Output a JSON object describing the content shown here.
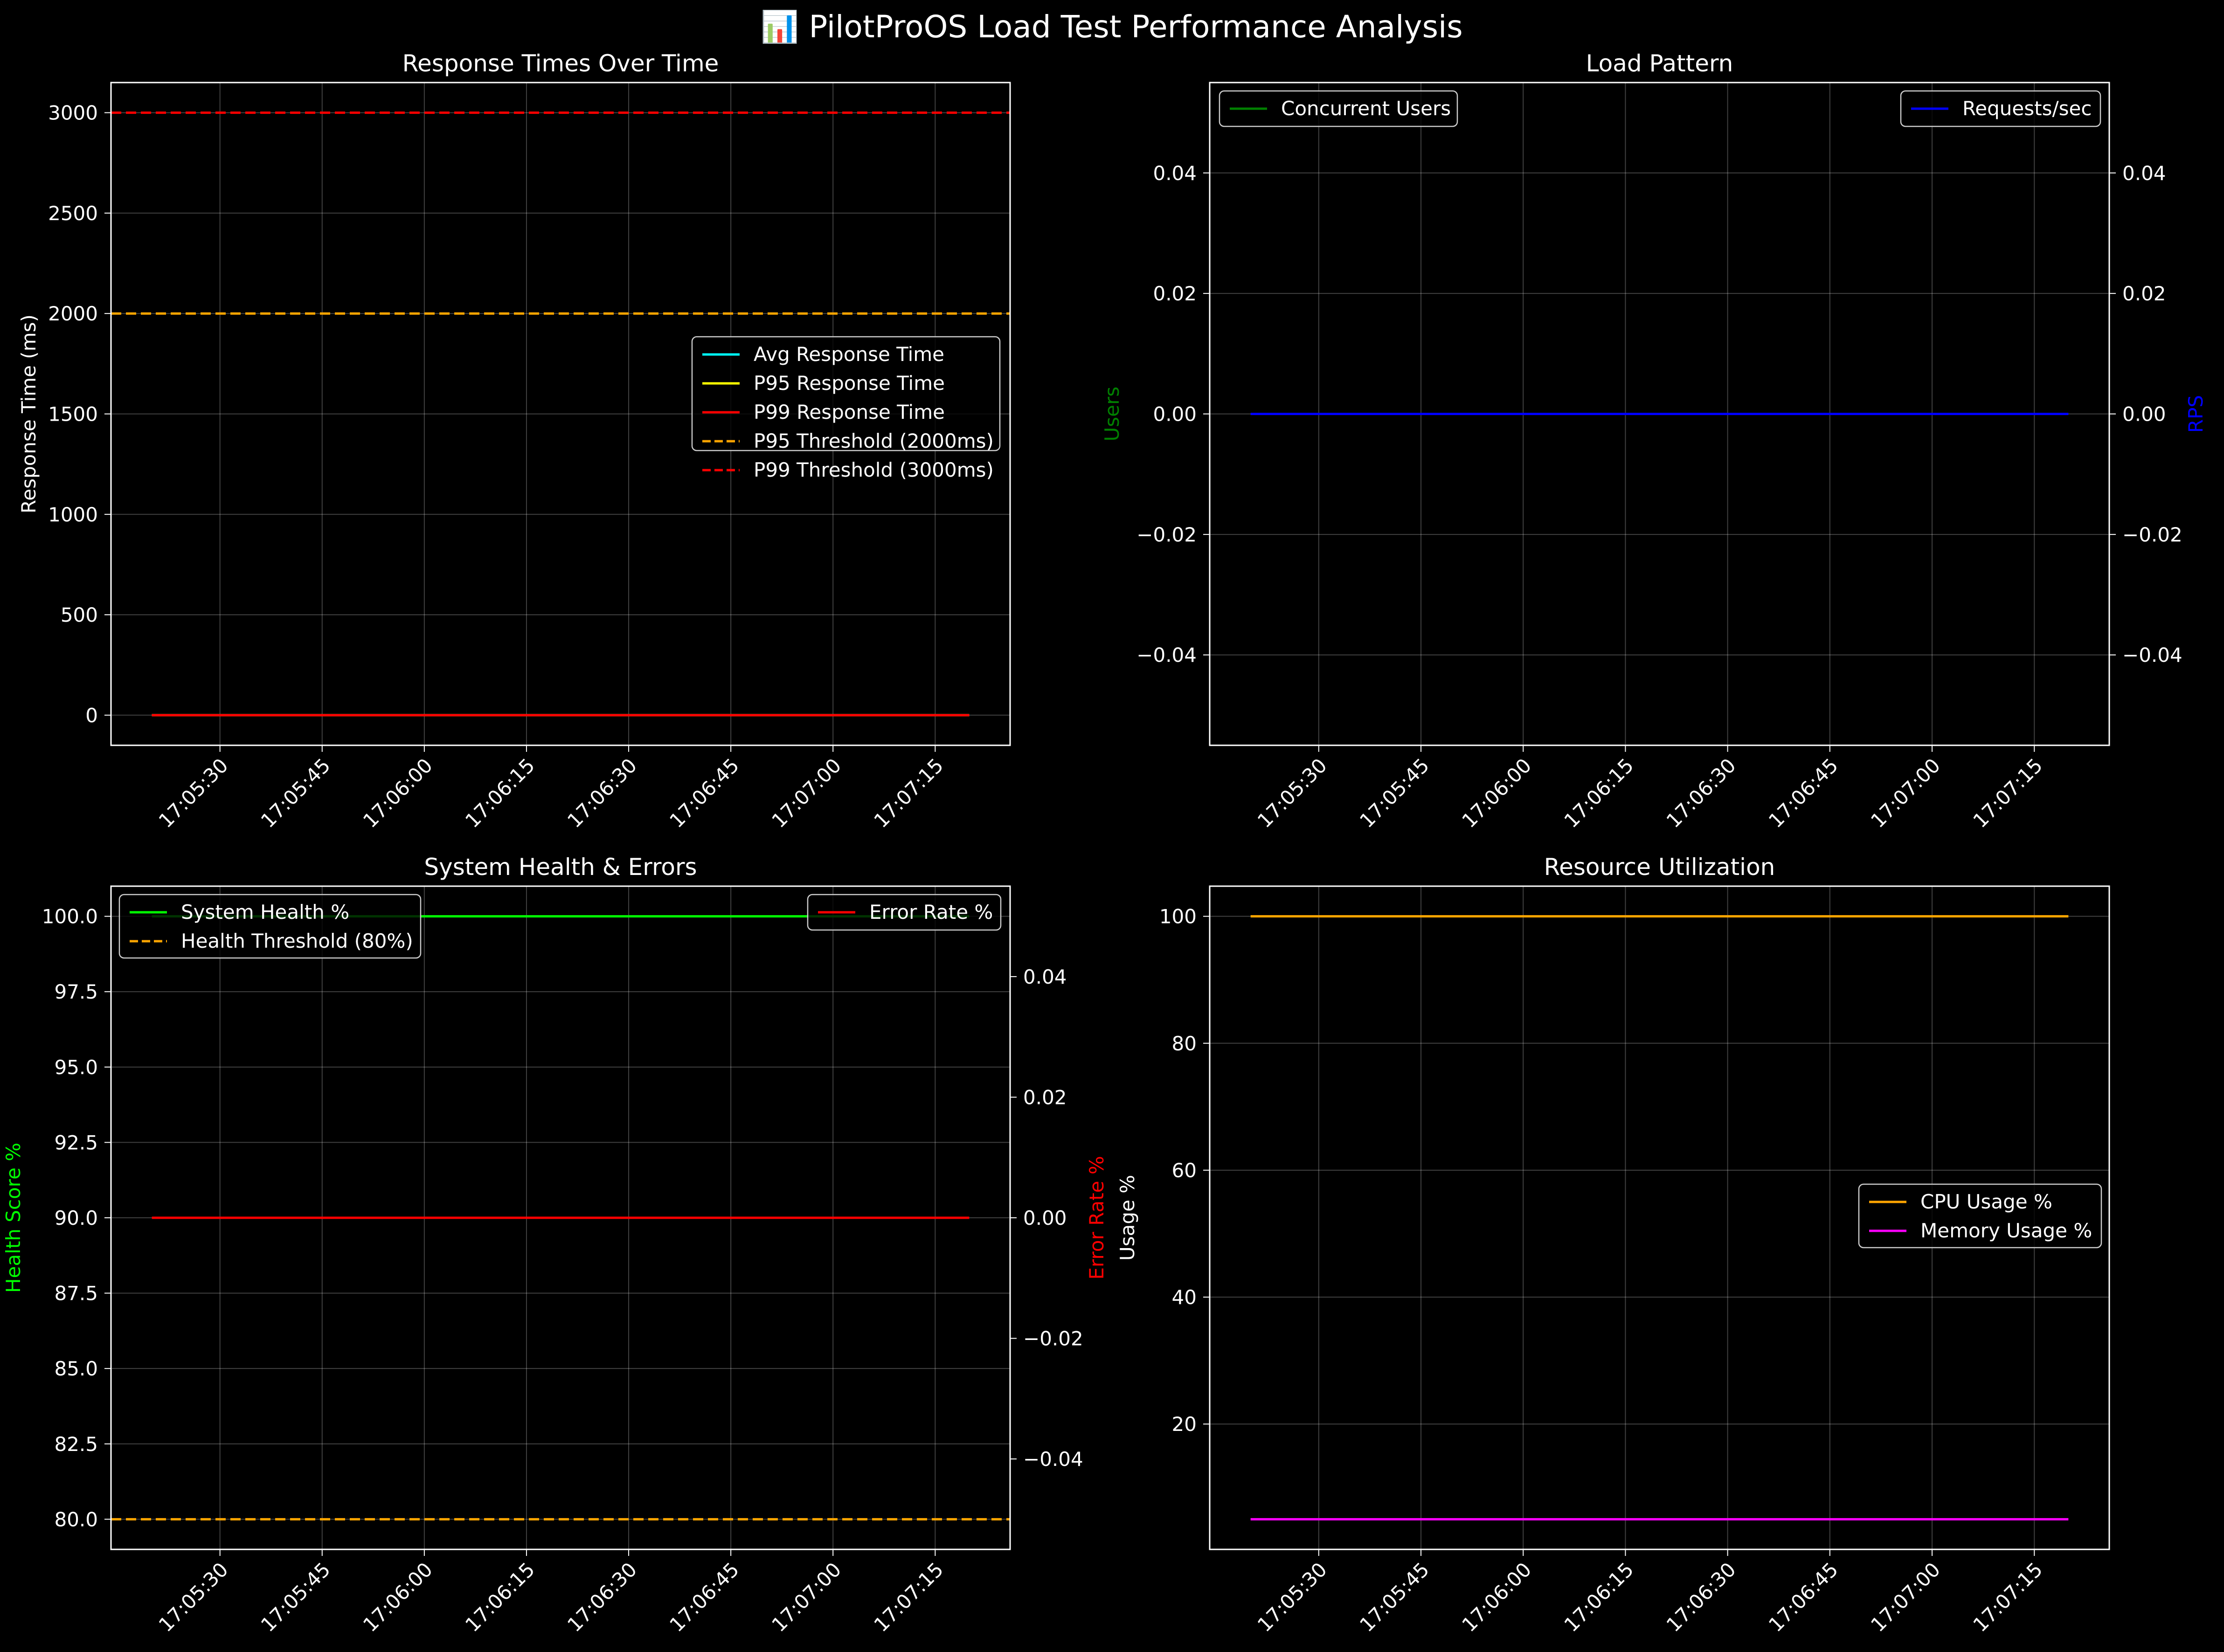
{
  "figure": {
    "title": "📊 PilotProOS Load Test Performance Analysis",
    "background": "#000000"
  },
  "chart_data": [
    {
      "id": "response",
      "type": "line",
      "title": "Response Times Over Time",
      "xlabel": "",
      "ylabel": "Response Time (ms)",
      "xlim": [
        "17:05:14",
        "17:07:26"
      ],
      "ylim": [
        -150,
        3150
      ],
      "x_ticks": [
        "17:05:30",
        "17:05:45",
        "17:06:00",
        "17:06:15",
        "17:06:30",
        "17:06:45",
        "17:07:00",
        "17:07:15"
      ],
      "y_ticks": [
        0,
        500,
        1000,
        1500,
        2000,
        2500,
        3000
      ],
      "grid": true,
      "legend_position": "center-right",
      "series": [
        {
          "name": "Avg Response Time",
          "color": "#00ffff",
          "style": "solid",
          "x": [
            "17:05:20",
            "17:07:20"
          ],
          "y": [
            0,
            0
          ]
        },
        {
          "name": "P95 Response Time",
          "color": "#ffff00",
          "style": "solid",
          "x": [
            "17:05:20",
            "17:07:20"
          ],
          "y": [
            0,
            0
          ]
        },
        {
          "name": "P99 Response Time",
          "color": "#ff0000",
          "style": "solid",
          "x": [
            "17:05:20",
            "17:07:20"
          ],
          "y": [
            0,
            0
          ]
        },
        {
          "name": "P95 Threshold (2000ms)",
          "color": "#ffa500",
          "style": "dashed",
          "hline": 2000
        },
        {
          "name": "P99 Threshold (3000ms)",
          "color": "#ff0000",
          "style": "dashed",
          "hline": 3000
        }
      ]
    },
    {
      "id": "load",
      "type": "line",
      "title": "Load Pattern",
      "xlabel": "",
      "ylabel": "Users",
      "ylabel_color": "#008000",
      "y2label": "RPS",
      "y2label_color": "#0000ff",
      "xlim": [
        "17:05:14",
        "17:07:26"
      ],
      "ylim": [
        -0.055,
        0.055
      ],
      "y2lim": [
        -0.055,
        0.055
      ],
      "x_ticks": [
        "17:05:30",
        "17:05:45",
        "17:06:00",
        "17:06:15",
        "17:06:30",
        "17:06:45",
        "17:07:00",
        "17:07:15"
      ],
      "y_ticks": [
        "−0.04",
        "−0.02",
        "0.00",
        "0.02",
        "0.04"
      ],
      "y_tick_values": [
        -0.04,
        -0.02,
        0.0,
        0.02,
        0.04
      ],
      "y2_ticks": [
        "−0.04",
        "−0.02",
        "0.00",
        "0.02",
        "0.04"
      ],
      "y2_tick_values": [
        -0.04,
        -0.02,
        0.0,
        0.02,
        0.04
      ],
      "grid": true,
      "legend_position": "top-left / top-right",
      "series": [
        {
          "name": "Concurrent Users",
          "color": "#008000",
          "style": "solid",
          "axis": "left",
          "legend": "left",
          "x": [
            "17:05:20",
            "17:07:20"
          ],
          "y": [
            0,
            0
          ]
        },
        {
          "name": "Requests/sec",
          "color": "#0000ff",
          "style": "solid",
          "axis": "right",
          "legend": "right",
          "x": [
            "17:05:20",
            "17:07:20"
          ],
          "y": [
            0,
            0
          ]
        }
      ]
    },
    {
      "id": "health",
      "type": "line",
      "title": "System Health & Errors",
      "xlabel": "",
      "ylabel": "Health Score %",
      "ylabel_color": "#00ff00",
      "y2label": "Error Rate %",
      "y2label_color": "#ff0000",
      "xlim": [
        "17:05:14",
        "17:07:26"
      ],
      "ylim": [
        79,
        101
      ],
      "y2lim": [
        -0.055,
        0.055
      ],
      "x_ticks": [
        "17:05:30",
        "17:05:45",
        "17:06:00",
        "17:06:15",
        "17:06:30",
        "17:06:45",
        "17:07:00",
        "17:07:15"
      ],
      "y_ticks": [
        "80.0",
        "82.5",
        "85.0",
        "87.5",
        "90.0",
        "92.5",
        "95.0",
        "97.5",
        "100.0"
      ],
      "y_tick_values": [
        80,
        82.5,
        85,
        87.5,
        90,
        92.5,
        95,
        97.5,
        100
      ],
      "y2_ticks": [
        "−0.04",
        "−0.02",
        "0.00",
        "0.02",
        "0.04"
      ],
      "y2_tick_values": [
        -0.04,
        -0.02,
        0.0,
        0.02,
        0.04
      ],
      "grid": true,
      "legend_position": "top-left / top-right",
      "series": [
        {
          "name": "System Health %",
          "color": "#00ff00",
          "style": "solid",
          "axis": "left",
          "legend": "left",
          "x": [
            "17:05:20",
            "17:07:20"
          ],
          "y": [
            100,
            100
          ]
        },
        {
          "name": "Health Threshold (80%)",
          "color": "#ffa500",
          "style": "dashed",
          "axis": "left",
          "legend": "left",
          "hline": 80
        },
        {
          "name": "Error Rate %",
          "color": "#ff0000",
          "style": "solid",
          "axis": "right",
          "legend": "right",
          "x": [
            "17:05:20",
            "17:07:20"
          ],
          "y": [
            0,
            0
          ]
        }
      ]
    },
    {
      "id": "resource",
      "type": "line",
      "title": "Resource Utilization",
      "xlabel": "",
      "ylabel": "Usage %",
      "xlim": [
        "17:05:14",
        "17:07:26"
      ],
      "ylim": [
        0.25,
        104.75
      ],
      "x_ticks": [
        "17:05:30",
        "17:05:45",
        "17:06:00",
        "17:06:15",
        "17:06:30",
        "17:06:45",
        "17:07:00",
        "17:07:15"
      ],
      "y_ticks": [
        20,
        40,
        60,
        80,
        100
      ],
      "grid": true,
      "legend_position": "center-right",
      "series": [
        {
          "name": "CPU Usage %",
          "color": "#ffa500",
          "style": "solid",
          "x": [
            "17:05:20",
            "17:07:20"
          ],
          "y": [
            100,
            100
          ]
        },
        {
          "name": "Memory Usage %",
          "color": "#ff00ff",
          "style": "solid",
          "x": [
            "17:05:20",
            "17:07:20"
          ],
          "y": [
            5,
            5
          ]
        }
      ]
    }
  ]
}
